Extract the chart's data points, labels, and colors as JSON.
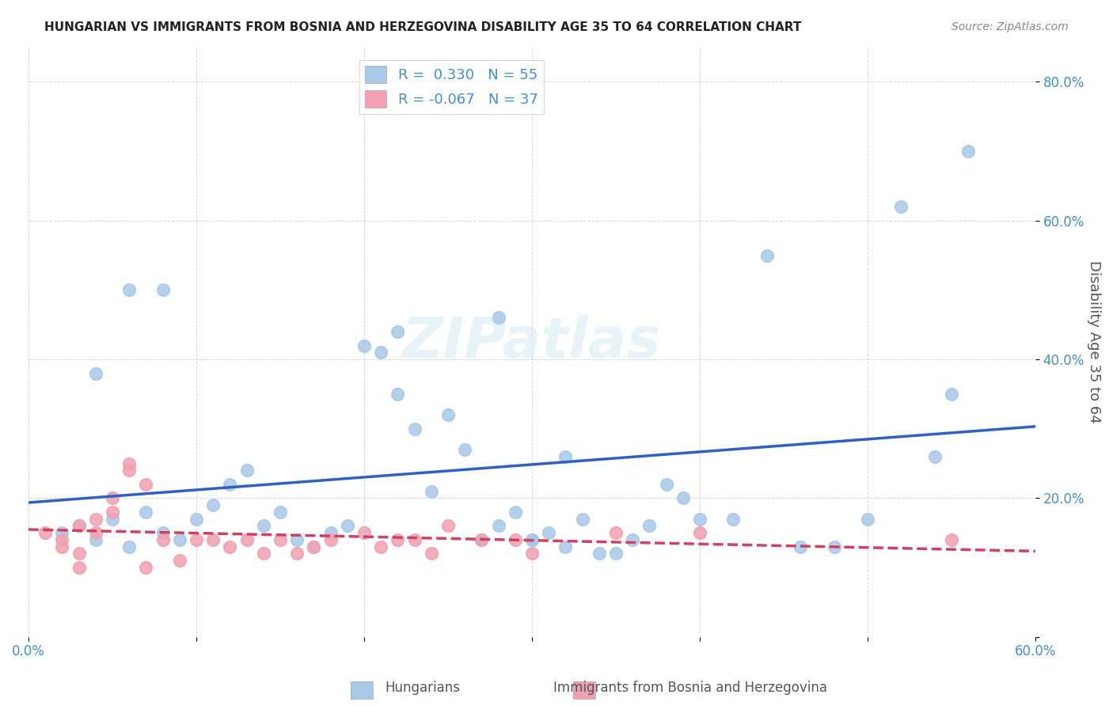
{
  "title": "HUNGARIAN VS IMMIGRANTS FROM BOSNIA AND HERZEGOVINA DISABILITY AGE 35 TO 64 CORRELATION CHART",
  "source": "Source: ZipAtlas.com",
  "ylabel": "Disability Age 35 to 64",
  "xlabel": "",
  "xlim": [
    0.0,
    0.6
  ],
  "ylim": [
    0.0,
    0.85
  ],
  "xticks": [
    0.0,
    0.1,
    0.2,
    0.3,
    0.4,
    0.5,
    0.6
  ],
  "yticks": [
    0.0,
    0.2,
    0.4,
    0.6,
    0.8
  ],
  "ytick_labels": [
    "",
    "20.0%",
    "40.0%",
    "60.0%",
    "80.0%"
  ],
  "xtick_labels": [
    "0.0%",
    "",
    "",
    "",
    "",
    "",
    "60.0%"
  ],
  "blue_color": "#a8c8e8",
  "blue_line_color": "#3060c0",
  "pink_color": "#f0a0b0",
  "pink_line_color": "#d04060",
  "legend_R1": "R =  0.330   N = 55",
  "legend_R2": "R = -0.067   N = 37",
  "watermark": "ZIPatlas",
  "blue_R": 0.33,
  "blue_N": 55,
  "pink_R": -0.067,
  "pink_N": 37,
  "blue_scatter_x": [
    0.02,
    0.03,
    0.04,
    0.05,
    0.06,
    0.07,
    0.08,
    0.09,
    0.1,
    0.11,
    0.12,
    0.13,
    0.14,
    0.15,
    0.16,
    0.17,
    0.18,
    0.19,
    0.2,
    0.21,
    0.22,
    0.23,
    0.24,
    0.25,
    0.26,
    0.27,
    0.28,
    0.29,
    0.3,
    0.31,
    0.32,
    0.33,
    0.34,
    0.35,
    0.36,
    0.37,
    0.38,
    0.39,
    0.4,
    0.42,
    0.44,
    0.46,
    0.48,
    0.5,
    0.52,
    0.54,
    0.56,
    0.3,
    0.28,
    0.22,
    0.08,
    0.06,
    0.04,
    0.55,
    0.32
  ],
  "blue_scatter_y": [
    0.15,
    0.16,
    0.14,
    0.17,
    0.13,
    0.18,
    0.15,
    0.14,
    0.17,
    0.19,
    0.22,
    0.24,
    0.16,
    0.18,
    0.14,
    0.13,
    0.15,
    0.16,
    0.42,
    0.41,
    0.35,
    0.3,
    0.21,
    0.32,
    0.27,
    0.14,
    0.16,
    0.18,
    0.14,
    0.15,
    0.13,
    0.17,
    0.12,
    0.12,
    0.14,
    0.16,
    0.22,
    0.2,
    0.17,
    0.17,
    0.55,
    0.13,
    0.13,
    0.17,
    0.62,
    0.26,
    0.7,
    0.14,
    0.46,
    0.44,
    0.5,
    0.5,
    0.38,
    0.35,
    0.26
  ],
  "pink_scatter_x": [
    0.01,
    0.02,
    0.02,
    0.03,
    0.03,
    0.04,
    0.04,
    0.05,
    0.05,
    0.06,
    0.06,
    0.07,
    0.08,
    0.09,
    0.1,
    0.11,
    0.12,
    0.13,
    0.14,
    0.15,
    0.16,
    0.17,
    0.18,
    0.2,
    0.21,
    0.22,
    0.23,
    0.24,
    0.25,
    0.27,
    0.29,
    0.3,
    0.35,
    0.4,
    0.55,
    0.03,
    0.07
  ],
  "pink_scatter_y": [
    0.15,
    0.13,
    0.14,
    0.16,
    0.12,
    0.15,
    0.17,
    0.2,
    0.18,
    0.24,
    0.25,
    0.22,
    0.14,
    0.11,
    0.14,
    0.14,
    0.13,
    0.14,
    0.12,
    0.14,
    0.12,
    0.13,
    0.14,
    0.15,
    0.13,
    0.14,
    0.14,
    0.12,
    0.16,
    0.14,
    0.14,
    0.12,
    0.15,
    0.15,
    0.14,
    0.1,
    0.1
  ]
}
